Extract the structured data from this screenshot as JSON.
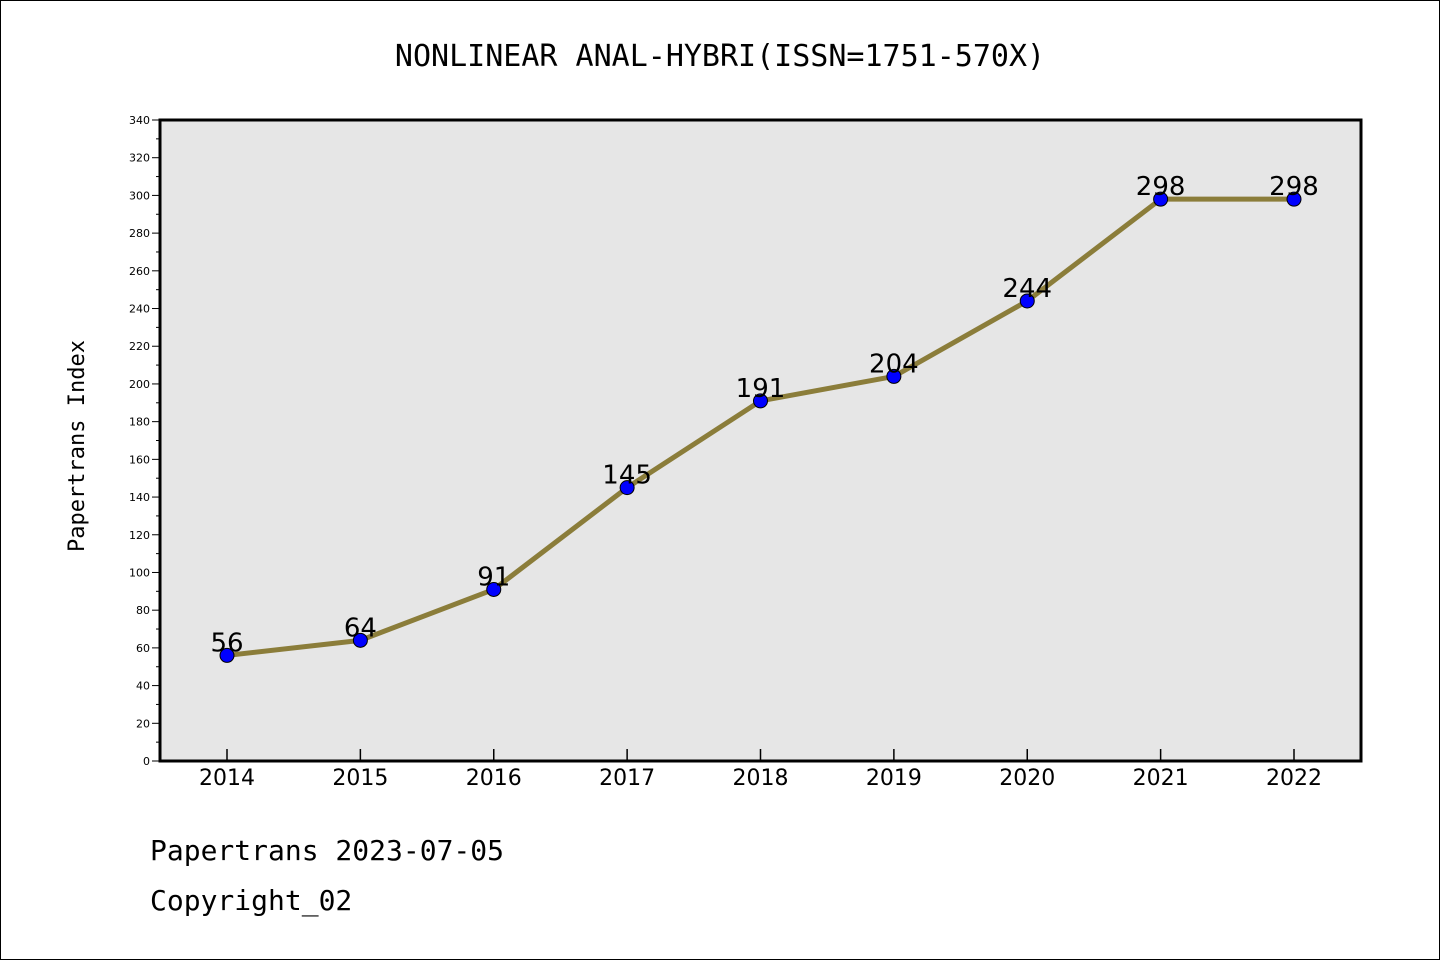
{
  "chart_data": {
    "type": "line",
    "title": "NONLINEAR ANAL-HYBRI(ISSN=1751-570X)",
    "xlabel": "",
    "ylabel": "Papertrans Index",
    "categories": [
      "2014",
      "2015",
      "2016",
      "2017",
      "2018",
      "2019",
      "2020",
      "2021",
      "2022"
    ],
    "values": [
      56,
      64,
      91,
      145,
      191,
      204,
      244,
      298,
      298
    ],
    "ylim": [
      0,
      340
    ],
    "ytick_step": 20,
    "grid": false,
    "line_color": "#8B7D3A",
    "marker_color": "#0000FF",
    "plot_background": "#E6E6E6"
  },
  "footer": {
    "line1": "Papertrans 2023-07-05",
    "line2": "Copyright_02"
  }
}
